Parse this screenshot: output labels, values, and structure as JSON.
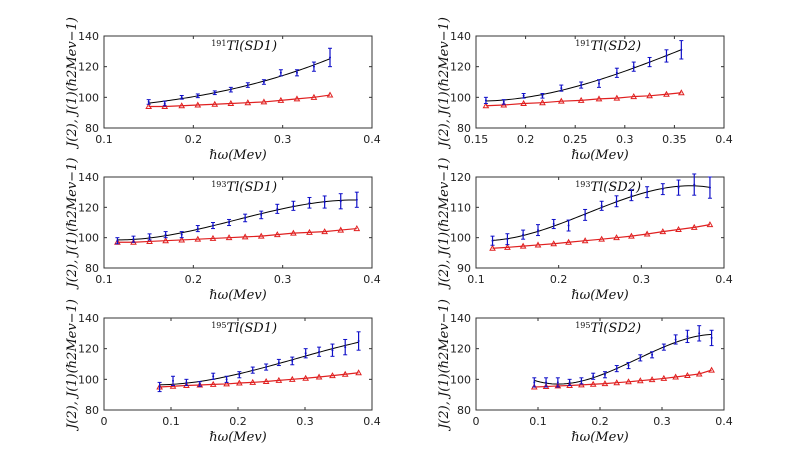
{
  "chart_data": [
    {
      "type": "line",
      "title_mass": "191",
      "title_name": "Tl(SD1)",
      "xlabel": "ℏω(Mev)",
      "ylabel": "J(2), J(1)(ℏ2Mev−1)",
      "xlim": [
        0.1,
        0.4
      ],
      "xticks": [
        0.1,
        0.2,
        0.3,
        0.4
      ],
      "ylim": [
        80,
        140
      ],
      "yticks": [
        80,
        100,
        120,
        140
      ],
      "x": [
        0.15,
        0.168,
        0.187,
        0.205,
        0.224,
        0.242,
        0.261,
        0.279,
        0.298,
        0.316,
        0.335,
        0.353
      ],
      "j2": [
        97,
        96,
        100,
        101,
        103,
        105,
        108,
        110,
        116,
        116,
        120,
        126
      ],
      "j2_err": [
        1.5,
        1.5,
        1.2,
        1.2,
        1.2,
        1.5,
        1.5,
        1.5,
        2,
        2,
        3,
        6
      ],
      "j1": [
        94,
        94,
        94.5,
        95,
        95.5,
        96,
        96.5,
        97,
        98,
        99,
        100,
        101.5
      ]
    },
    {
      "type": "line",
      "title_mass": "191",
      "title_name": "Tl(SD2)",
      "xlabel": "ℏω(Mev)",
      "ylabel": "J(2), J(1)(ℏ2Mev−1)",
      "xlim": [
        0.15,
        0.4
      ],
      "xticks": [
        0.15,
        0.2,
        0.25,
        0.3,
        0.35,
        0.4
      ],
      "ylim": [
        80,
        140
      ],
      "yticks": [
        80,
        100,
        120,
        140
      ],
      "x": [
        0.16,
        0.178,
        0.198,
        0.217,
        0.236,
        0.256,
        0.274,
        0.292,
        0.309,
        0.325,
        0.342,
        0.357
      ],
      "j2": [
        98,
        97,
        101,
        101,
        106,
        108,
        109,
        116,
        120,
        123,
        127,
        131
      ],
      "j2_err": [
        2,
        1.5,
        1.5,
        1.5,
        2,
        2,
        2.5,
        3,
        3,
        3,
        4,
        6
      ],
      "j1": [
        94.5,
        95,
        96,
        96.5,
        97.5,
        98,
        99,
        99.5,
        100.5,
        101,
        102,
        103
      ]
    },
    {
      "type": "line",
      "title_mass": "193",
      "title_name": "Tl(SD1)",
      "xlabel": "ℏω(Mev)",
      "ylabel": "J(2), J(1)(ℏ2Mev−1)",
      "xlim": [
        0.1,
        0.4
      ],
      "xticks": [
        0.1,
        0.2,
        0.3,
        0.4
      ],
      "ylim": [
        80,
        140
      ],
      "yticks": [
        80,
        100,
        120,
        140
      ],
      "x": [
        0.115,
        0.133,
        0.151,
        0.169,
        0.187,
        0.205,
        0.222,
        0.24,
        0.258,
        0.276,
        0.294,
        0.312,
        0.33,
        0.347,
        0.365,
        0.383
      ],
      "j2": [
        98,
        99,
        100.5,
        102,
        102,
        106,
        108,
        110,
        113,
        115,
        119,
        121,
        123,
        123.5,
        124,
        125
      ],
      "j2_err": [
        2,
        2,
        2,
        2,
        2,
        2,
        2,
        2,
        2.5,
        2.5,
        3,
        3,
        3.5,
        4,
        5,
        5
      ],
      "j1": [
        97,
        97,
        97.5,
        98,
        98.5,
        99,
        99.5,
        100,
        100.5,
        101,
        102,
        103,
        103.5,
        104,
        105,
        106
      ]
    },
    {
      "type": "line",
      "title_mass": "193",
      "title_name": "Tl(SD2)",
      "xlabel": "ℏω(Mev)",
      "ylabel": "J(2), J(1)(ℏ2Mev−1)",
      "xlim": [
        0.1,
        0.4
      ],
      "xticks": [
        0.1,
        0.2,
        0.3,
        0.4
      ],
      "ylim": [
        90,
        120
      ],
      "yticks": [
        90,
        100,
        110,
        120
      ],
      "x": [
        0.12,
        0.138,
        0.157,
        0.175,
        0.194,
        0.212,
        0.232,
        0.252,
        0.27,
        0.288,
        0.307,
        0.326,
        0.345,
        0.364,
        0.383
      ],
      "j2": [
        99,
        99.5,
        101,
        102.5,
        104.5,
        104,
        107.5,
        110.5,
        112,
        114,
        115,
        116,
        116.5,
        117.5,
        116.5
      ],
      "j2_err": [
        1.5,
        1.8,
        1.5,
        1.8,
        1.5,
        1.8,
        1.8,
        1.5,
        1.8,
        1.8,
        1.8,
        1.8,
        2.5,
        3.5,
        3.5
      ],
      "j1": [
        96.5,
        96.8,
        97.2,
        97.6,
        98,
        98.5,
        99,
        99.5,
        100,
        100.5,
        101.2,
        102,
        102.7,
        103.4,
        104.3
      ]
    },
    {
      "type": "line",
      "title_mass": "195",
      "title_name": "Tl(SD1)",
      "xlabel": "ℏω(Mev)",
      "ylabel": "J(2), J(1)(ℏ2Mev−1)",
      "xlim": [
        0,
        0.4
      ],
      "xticks": [
        0,
        0.1,
        0.2,
        0.3,
        0.4
      ],
      "ylim": [
        80,
        140
      ],
      "yticks": [
        80,
        100,
        120,
        140
      ],
      "x": [
        0.083,
        0.103,
        0.123,
        0.143,
        0.163,
        0.183,
        0.202,
        0.222,
        0.242,
        0.261,
        0.281,
        0.301,
        0.321,
        0.341,
        0.36,
        0.38
      ],
      "j2": [
        95,
        99,
        98,
        97,
        102,
        100,
        103,
        106,
        108,
        111,
        112,
        117,
        118,
        119,
        121,
        125
      ],
      "j2_err": [
        3,
        3,
        2,
        1.5,
        2,
        2,
        2,
        2,
        2,
        2,
        2.5,
        3,
        3,
        4,
        5,
        6
      ],
      "j1": [
        95,
        95.5,
        96,
        96.3,
        96.7,
        97,
        97.6,
        98,
        98.6,
        99.3,
        100,
        100.7,
        101.5,
        102.4,
        103.3,
        104.3
      ]
    },
    {
      "type": "line",
      "title_mass": "195",
      "title_name": "Tl(SD2)",
      "xlabel": "ℏω(Mev)",
      "ylabel": "J(2), J(1)(ℏ2Mev−1)",
      "xlim": [
        0,
        0.4
      ],
      "xticks": [
        0,
        0.1,
        0.2,
        0.3,
        0.4
      ],
      "ylim": [
        80,
        140
      ],
      "yticks": [
        80,
        100,
        120,
        140
      ],
      "x": [
        0.094,
        0.113,
        0.132,
        0.151,
        0.17,
        0.189,
        0.208,
        0.227,
        0.246,
        0.265,
        0.284,
        0.303,
        0.322,
        0.341,
        0.36,
        0.38
      ],
      "j2": [
        98,
        98,
        98,
        98,
        99,
        102,
        103,
        107,
        109,
        114,
        116,
        121,
        126,
        128,
        130,
        127
      ],
      "j2_err": [
        3,
        3,
        3,
        2,
        2,
        2,
        2,
        2,
        2,
        2,
        2,
        2,
        3,
        4,
        5,
        5
      ],
      "j1": [
        95,
        95.3,
        95.7,
        96,
        96.4,
        96.8,
        97.2,
        97.8,
        98.4,
        99.1,
        99.8,
        100.6,
        101.5,
        102.5,
        103.5,
        106
      ]
    }
  ],
  "colors": {
    "j2": "#1010c8",
    "fit": "#000000",
    "j1": "#e02020"
  }
}
